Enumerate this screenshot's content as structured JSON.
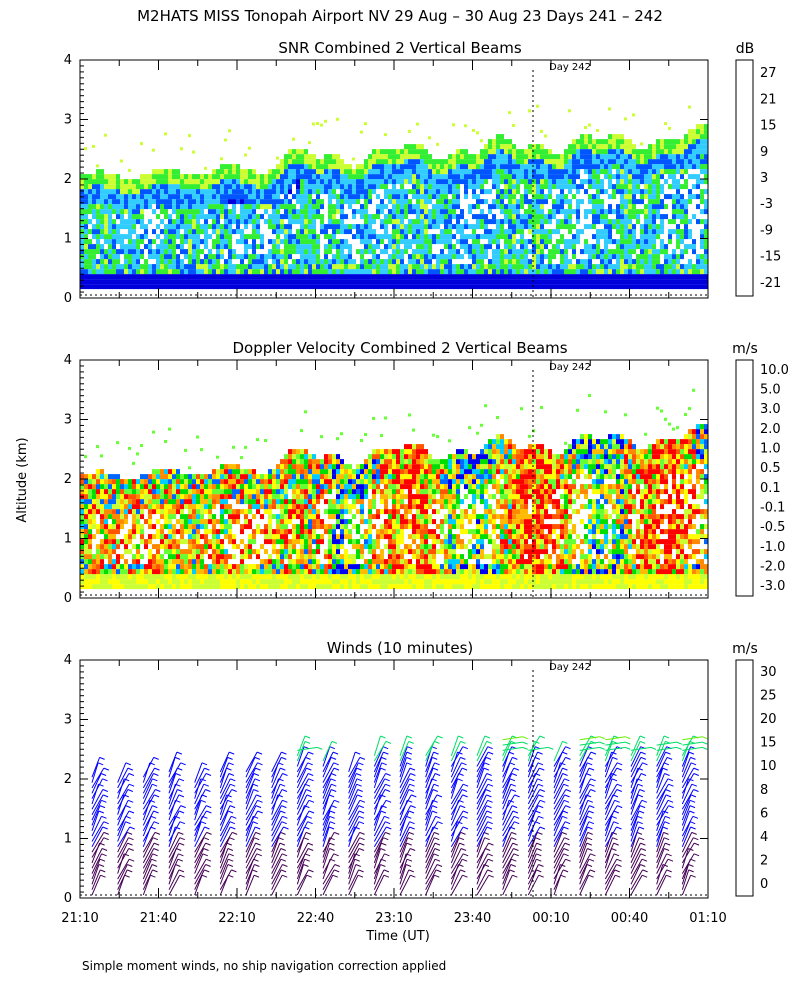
{
  "figure_title": "M2HATS MISS Tonopah Airport NV  29 Aug – 30 Aug 23 Days 241 – 242",
  "ylabel": "Altitude (km)",
  "xlabel": "Time (UT)",
  "footnote": "Simple moment winds, no ship navigation correction applied",
  "day_marker": "Day 242",
  "colors": {
    "snr_palette": [
      "#ccff33",
      "#33ee33",
      "#33ccff",
      "#0055ff",
      "#0000dd",
      "#550099",
      "#330055",
      "#ff2200",
      "#ff7700",
      "#ffbb00"
    ],
    "vel_palette": [
      "#ff0000",
      "#ff5500",
      "#ff8800",
      "#ffbb00",
      "#ffff00",
      "#ccff33",
      "#66ff33",
      "#00dd00",
      "#00ccff",
      "#0066ff",
      "#0000ee",
      "#3300aa",
      "#330044"
    ],
    "wind_palette": [
      "#000000",
      "#440055",
      "#0000ff",
      "#00aaff",
      "#00dd66",
      "#66ee00",
      "#ffbb00",
      "#ff6600",
      "#ff0000"
    ]
  },
  "chart_data": [
    {
      "type": "heatmap",
      "title": "SNR Combined 2 Vertical Beams",
      "unit": "dB",
      "x_ticks": [
        "21:10",
        "21:40",
        "22:10",
        "22:40",
        "23:10",
        "23:40",
        "00:10",
        "00:40",
        "01:10"
      ],
      "y_ticks": [
        "0",
        "1",
        "2",
        "3",
        "4"
      ],
      "ylim": [
        0,
        4
      ],
      "colorbar_labels": [
        "-21",
        "-15",
        "-9",
        "-3",
        "3",
        "9",
        "15",
        "21",
        "27"
      ],
      "colorbar_range": [
        -24,
        30
      ]
    },
    {
      "type": "heatmap",
      "title": "Doppler Velocity Combined 2 Vertical Beams",
      "unit": "m/s",
      "x_ticks": [
        "21:10",
        "21:40",
        "22:10",
        "22:40",
        "23:10",
        "23:40",
        "00:10",
        "00:40",
        "01:10"
      ],
      "y_ticks": [
        "0",
        "1",
        "2",
        "3",
        "4"
      ],
      "ylim": [
        0,
        4
      ],
      "colorbar_labels": [
        "-3.0",
        "-2.0",
        "-1.0",
        "-0.5",
        "-0.1",
        "0.1",
        "0.5",
        "1.0",
        "2.0",
        "3.0",
        "5.0",
        "10.0"
      ]
    },
    {
      "type": "scatter",
      "title": "Winds (10 minutes)",
      "unit": "m/s",
      "x_ticks": [
        "21:10",
        "21:40",
        "22:10",
        "22:40",
        "23:10",
        "23:40",
        "00:10",
        "00:40",
        "01:10"
      ],
      "y_ticks": [
        "0",
        "1",
        "2",
        "3",
        "4"
      ],
      "ylim": [
        0,
        4
      ],
      "colorbar_labels": [
        "0",
        "2",
        "4",
        "6",
        "8",
        "10",
        "15",
        "20",
        "25",
        "30"
      ]
    }
  ]
}
